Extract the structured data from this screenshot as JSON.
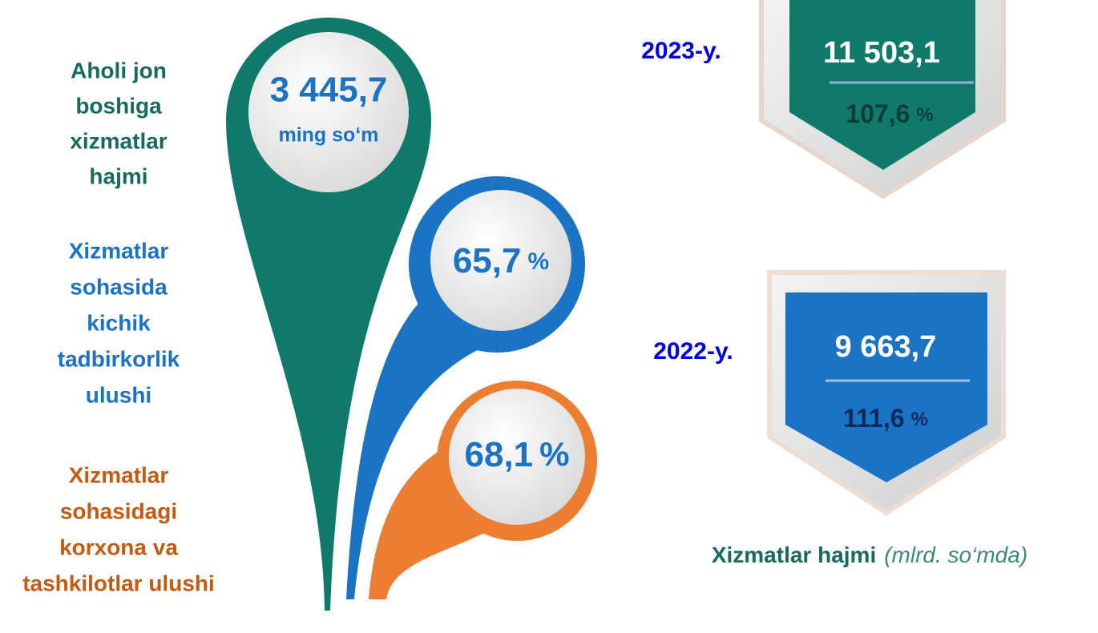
{
  "left_labels": [
    {
      "lines": [
        "Aholi jon",
        "boshiga",
        "xizmatlar",
        "hajmi"
      ]
    },
    {
      "lines": [
        "Xizmatlar",
        "sohasida",
        "kichik",
        "tadbirkorlik",
        "ulushi"
      ]
    },
    {
      "lines": [
        "Xizmatlar",
        "sohasidagi",
        "korxona va",
        "tashkilotlar ulushi"
      ]
    }
  ],
  "pins": [
    {
      "value": "3 445,7",
      "unit": "ming so‘m"
    },
    {
      "value": "65,7",
      "unit": "%"
    },
    {
      "value": "68,1",
      "unit": "%"
    }
  ],
  "years": [
    {
      "year": "2023-y.",
      "volume": "11 503,1",
      "growth": "107,6",
      "unit": "%"
    },
    {
      "year": "2022-y.",
      "volume": "9 663,7",
      "growth": "111,6",
      "unit": "%"
    }
  ],
  "footer": {
    "title": "Xizmatlar hajmi",
    "unit": "(mlrd. so‘mda)"
  }
}
